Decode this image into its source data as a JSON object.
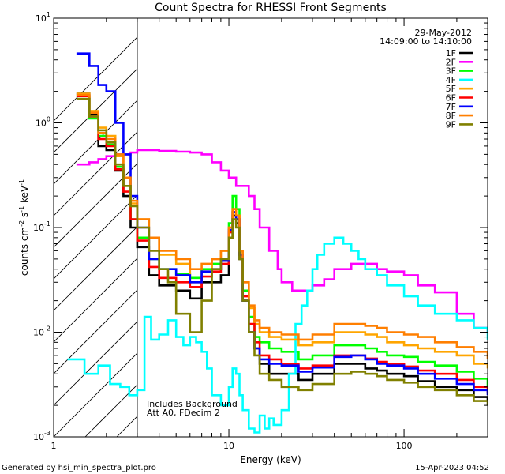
{
  "chart_data": {
    "type": "line",
    "scale": {
      "x": "log",
      "y": "log"
    },
    "title": "Count Spectra for RHESSI Front Segments",
    "date": "29-May-2012",
    "time_range": "14:09:00 to 14:10:00",
    "xlabel": "Energy (keV)",
    "ylabel_parts": {
      "base": "counts cm",
      "exp1": "-2",
      "mid": " s",
      "exp2": "-1",
      "tail": " keV",
      "exp3": "-1"
    },
    "xlim": [
      1,
      300
    ],
    "ylim": [
      0.001,
      10
    ],
    "x_ticks": [
      {
        "value": 1,
        "label": "1"
      },
      {
        "value": 10,
        "label": "10"
      },
      {
        "value": 100,
        "label": "100"
      }
    ],
    "y_ticks": [
      {
        "value": 0.001,
        "base": "10",
        "exp": "-3"
      },
      {
        "value": 0.01,
        "base": "10",
        "exp": "-2"
      },
      {
        "value": 0.1,
        "base": "10",
        "exp": "-1"
      },
      {
        "value": 1,
        "base": "10",
        "exp": "0"
      },
      {
        "value": 10,
        "base": "10",
        "exp": "1"
      }
    ],
    "hatched_region_x": [
      1,
      3
    ],
    "annotations": [
      "Includes Background",
      "Att A0, FDecim 2"
    ],
    "legend_position": "top-right",
    "series": [
      {
        "name": "1F",
        "color": "#000000",
        "x": [
          1.35,
          1.6,
          1.8,
          2.0,
          2.25,
          2.5,
          2.75,
          3.0,
          3.5,
          4.0,
          5.0,
          6.0,
          7.0,
          8.0,
          9.0,
          10.0,
          10.5,
          11.0,
          11.5,
          12.0,
          13,
          14,
          15,
          17,
          20,
          25,
          30,
          40,
          50,
          60,
          70,
          80,
          100,
          120,
          150,
          200,
          250,
          300
        ],
        "y": [
          1.9,
          1.2,
          0.6,
          0.55,
          0.35,
          0.2,
          0.1,
          0.065,
          0.035,
          0.028,
          0.025,
          0.021,
          0.03,
          0.03,
          0.035,
          0.08,
          0.13,
          0.11,
          0.05,
          0.02,
          0.01,
          0.007,
          0.005,
          0.004,
          0.004,
          0.0035,
          0.004,
          0.005,
          0.005,
          0.0045,
          0.0043,
          0.004,
          0.0038,
          0.0034,
          0.003,
          0.0028,
          0.0024,
          0.0022
        ]
      },
      {
        "name": "2F",
        "color": "#ff00ff",
        "x": [
          1.35,
          1.6,
          1.8,
          2.0,
          2.25,
          2.5,
          2.75,
          3.0,
          3.5,
          4.0,
          5.0,
          6.0,
          7.0,
          8.0,
          9.0,
          10.0,
          11.0,
          12.0,
          13.0,
          14.0,
          15.0,
          17.0,
          19.0,
          20.0,
          23.0,
          25.0,
          30.0,
          35.0,
          40.0,
          50.0,
          60.0,
          70.0,
          80.0,
          100.0,
          120.0,
          150.0,
          200.0,
          250.0,
          300.0
        ],
        "y": [
          0.4,
          0.42,
          0.45,
          0.48,
          0.5,
          0.5,
          0.52,
          0.55,
          0.55,
          0.54,
          0.53,
          0.52,
          0.5,
          0.42,
          0.35,
          0.3,
          0.25,
          0.25,
          0.2,
          0.15,
          0.1,
          0.06,
          0.04,
          0.03,
          0.025,
          0.025,
          0.028,
          0.032,
          0.04,
          0.045,
          0.045,
          0.04,
          0.038,
          0.035,
          0.028,
          0.024,
          0.015,
          0.011,
          0.01
        ]
      },
      {
        "name": "3F",
        "color": "#00ff00",
        "x": [
          1.35,
          1.6,
          1.8,
          2.0,
          2.25,
          2.5,
          2.75,
          3.0,
          3.5,
          4.0,
          5.0,
          6.0,
          7.0,
          8.0,
          9.0,
          10.0,
          10.5,
          11.0,
          11.5,
          12.0,
          13,
          14,
          15,
          17,
          20,
          25,
          30,
          40,
          50,
          60,
          70,
          80,
          100,
          120,
          150,
          200,
          250,
          300
        ],
        "y": [
          1.8,
          1.1,
          0.75,
          0.62,
          0.38,
          0.25,
          0.12,
          0.08,
          0.05,
          0.04,
          0.036,
          0.033,
          0.04,
          0.045,
          0.05,
          0.11,
          0.2,
          0.15,
          0.06,
          0.025,
          0.014,
          0.009,
          0.008,
          0.007,
          0.0065,
          0.0055,
          0.006,
          0.0075,
          0.0075,
          0.007,
          0.0065,
          0.006,
          0.0058,
          0.0052,
          0.0048,
          0.0042,
          0.0036,
          0.003
        ]
      },
      {
        "name": "4F",
        "color": "#00ffff",
        "x": [
          1.2,
          1.5,
          1.8,
          2.1,
          2.4,
          2.7,
          3.0,
          3.3,
          3.6,
          4.0,
          4.5,
          5.0,
          5.5,
          6.0,
          6.5,
          7.0,
          7.5,
          8.0,
          9.0,
          10.0,
          10.5,
          11.0,
          11.5,
          12.0,
          13,
          14,
          15,
          16,
          17,
          18,
          20,
          22,
          24,
          26,
          28,
          30,
          32,
          35,
          40,
          45,
          50,
          55,
          60,
          70,
          80,
          100,
          120,
          150,
          200,
          250,
          300
        ],
        "y": [
          0.0055,
          0.004,
          0.0048,
          0.0032,
          0.003,
          0.0025,
          0.0028,
          0.014,
          0.0085,
          0.0095,
          0.013,
          0.009,
          0.0075,
          0.009,
          0.008,
          0.0065,
          0.0045,
          0.0025,
          0.002,
          0.003,
          0.0045,
          0.004,
          0.0025,
          0.0018,
          0.0012,
          0.0011,
          0.0016,
          0.0012,
          0.0015,
          0.0013,
          0.0018,
          0.004,
          0.012,
          0.018,
          0.025,
          0.04,
          0.055,
          0.07,
          0.08,
          0.07,
          0.06,
          0.05,
          0.04,
          0.035,
          0.028,
          0.022,
          0.018,
          0.015,
          0.013,
          0.011,
          0.0085
        ]
      },
      {
        "name": "5F",
        "color": "#ffa500",
        "x": [
          1.35,
          1.6,
          1.8,
          2.0,
          2.25,
          2.5,
          2.75,
          3.0,
          3.5,
          4.0,
          5.0,
          6.0,
          7.0,
          8.0,
          9.0,
          10.0,
          10.5,
          11.0,
          11.5,
          12.0,
          13,
          14,
          15,
          17,
          20,
          25,
          30,
          40,
          50,
          60,
          70,
          80,
          100,
          120,
          150,
          200,
          250,
          300
        ],
        "y": [
          1.9,
          1.3,
          0.9,
          0.75,
          0.48,
          0.3,
          0.17,
          0.12,
          0.08,
          0.055,
          0.045,
          0.03,
          0.038,
          0.05,
          0.06,
          0.1,
          0.15,
          0.13,
          0.06,
          0.03,
          0.017,
          0.012,
          0.01,
          0.009,
          0.0085,
          0.0075,
          0.008,
          0.01,
          0.01,
          0.0095,
          0.009,
          0.008,
          0.0075,
          0.007,
          0.0065,
          0.006,
          0.005,
          0.0045
        ]
      },
      {
        "name": "6F",
        "color": "#ff0000",
        "x": [
          1.35,
          1.6,
          1.8,
          2.0,
          2.25,
          2.5,
          2.75,
          3.0,
          3.5,
          4.0,
          5.0,
          6.0,
          7.0,
          8.0,
          9.0,
          10.0,
          10.5,
          11.0,
          11.5,
          12.0,
          13,
          14,
          15,
          17,
          20,
          25,
          30,
          40,
          50,
          60,
          70,
          80,
          100,
          120,
          150,
          200,
          250,
          300
        ],
        "y": [
          1.8,
          1.15,
          0.7,
          0.6,
          0.36,
          0.22,
          0.12,
          0.075,
          0.042,
          0.033,
          0.03,
          0.027,
          0.034,
          0.038,
          0.045,
          0.09,
          0.14,
          0.12,
          0.055,
          0.022,
          0.012,
          0.008,
          0.006,
          0.0055,
          0.005,
          0.0045,
          0.0048,
          0.006,
          0.006,
          0.0056,
          0.0052,
          0.005,
          0.0047,
          0.0043,
          0.004,
          0.0035,
          0.003,
          0.0026
        ]
      },
      {
        "name": "7F",
        "color": "#0000ff",
        "x": [
          1.35,
          1.6,
          1.8,
          2.0,
          2.25,
          2.5,
          2.75,
          3.0,
          3.5,
          4.0,
          5.0,
          6.0,
          7.0,
          8.0,
          9.0,
          10.0,
          10.5,
          11.0,
          11.5,
          12.0,
          13,
          14,
          15,
          17,
          20,
          25,
          30,
          40,
          50,
          60,
          70,
          80,
          100,
          120,
          150,
          200,
          250,
          300
        ],
        "y": [
          4.6,
          3.5,
          2.3,
          2.0,
          1.0,
          0.5,
          0.2,
          0.1,
          0.05,
          0.04,
          0.035,
          0.03,
          0.038,
          0.04,
          0.048,
          0.095,
          0.14,
          0.12,
          0.055,
          0.02,
          0.01,
          0.007,
          0.0055,
          0.005,
          0.0048,
          0.0042,
          0.0046,
          0.0058,
          0.006,
          0.0055,
          0.005,
          0.0048,
          0.0045,
          0.004,
          0.0036,
          0.0032,
          0.0028,
          0.0025
        ]
      },
      {
        "name": "8F",
        "color": "#ff7f00",
        "x": [
          1.35,
          1.6,
          1.8,
          2.0,
          2.25,
          2.5,
          2.75,
          3.0,
          3.5,
          4.0,
          5.0,
          6.0,
          7.0,
          8.0,
          9.0,
          10.0,
          10.5,
          11.0,
          11.5,
          12.0,
          13,
          14,
          15,
          17,
          20,
          25,
          30,
          40,
          50,
          60,
          70,
          80,
          100,
          120,
          150,
          200,
          250,
          300
        ],
        "y": [
          1.85,
          1.25,
          0.8,
          0.7,
          0.5,
          0.3,
          0.18,
          0.12,
          0.08,
          0.06,
          0.05,
          0.04,
          0.045,
          0.05,
          0.06,
          0.1,
          0.15,
          0.13,
          0.06,
          0.03,
          0.018,
          0.013,
          0.011,
          0.01,
          0.0095,
          0.0085,
          0.0095,
          0.012,
          0.012,
          0.0115,
          0.011,
          0.01,
          0.0095,
          0.009,
          0.008,
          0.0072,
          0.0065,
          0.0055
        ]
      },
      {
        "name": "9F",
        "color": "#808000",
        "x": [
          1.35,
          1.6,
          1.8,
          2.0,
          2.25,
          2.5,
          2.75,
          3.0,
          3.5,
          4.0,
          4.5,
          5.0,
          6.0,
          7.0,
          8.0,
          9.0,
          10.0,
          10.5,
          11.0,
          11.5,
          12.0,
          13,
          14,
          15,
          17,
          20,
          25,
          30,
          40,
          50,
          60,
          70,
          80,
          100,
          120,
          150,
          200,
          250,
          300
        ],
        "y": [
          1.7,
          1.15,
          0.85,
          0.65,
          0.4,
          0.25,
          0.16,
          0.1,
          0.06,
          0.04,
          0.03,
          0.015,
          0.01,
          0.02,
          0.04,
          0.05,
          0.08,
          0.12,
          0.1,
          0.05,
          0.02,
          0.01,
          0.006,
          0.004,
          0.0035,
          0.003,
          0.0028,
          0.0032,
          0.004,
          0.0042,
          0.004,
          0.0038,
          0.0035,
          0.0033,
          0.003,
          0.0028,
          0.0025,
          0.0022,
          0.002
        ]
      }
    ]
  },
  "footer": {
    "generated_by": "Generated by hsi_min_spectra_plot.pro",
    "timestamp": "15-Apr-2023 04:52"
  }
}
